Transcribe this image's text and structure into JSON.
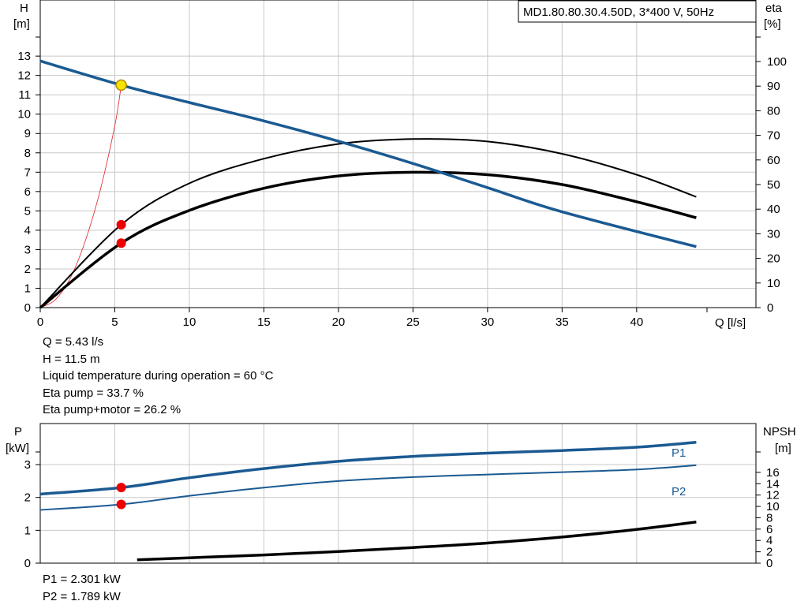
{
  "colors": {
    "head": "#1b5a92",
    "eta": "#000000",
    "npsh": "#000000",
    "eta_loss": "#e02020",
    "marker": "#ee0000",
    "duty": "#f5e400",
    "grid": "#c8c8c8"
  },
  "model_label": "MD1.80.80.30.4.50D, 3*400 V, 50Hz",
  "legend": {
    "p1": "P1",
    "p2": "P2"
  },
  "readouts": {
    "q": "Q = 5.43 l/s",
    "h": "H = 11.5 m",
    "temp": "Liquid temperature during operation = 60 °C",
    "eta_pump": "Eta pump = 33.7 %",
    "eta_total": "Eta pump+motor = 26.2 %",
    "p1": "P1 = 2.301 kW",
    "p2": "P2 = 1.789 kW"
  },
  "chart_data": [
    {
      "type": "line",
      "title": "",
      "xlabel": "Q [l/s]",
      "ylabel": "H [m]",
      "ylabel_top": "H",
      "ylabel_unit": "[m]",
      "y2label_top": "eta",
      "y2label_unit": "[%]",
      "xlim": [
        0,
        48
      ],
      "ylim": [
        0,
        15.9
      ],
      "y2lim": [
        0,
        125
      ],
      "xticks": [
        0,
        5,
        10,
        15,
        20,
        25,
        30,
        35,
        40
      ],
      "yticks": [
        0,
        1,
        2,
        3,
        4,
        5,
        6,
        7,
        8,
        9,
        10,
        11,
        12,
        13
      ],
      "y2ticks": [
        0,
        10,
        20,
        30,
        40,
        50,
        60,
        70,
        80,
        90,
        100
      ],
      "grid": true,
      "series": [
        {
          "key": "head",
          "axis": "y",
          "x": [
            0,
            5.43,
            10,
            15,
            20,
            25,
            30,
            35,
            44
          ],
          "values": [
            12.75,
            11.5,
            10.6,
            9.65,
            8.6,
            7.45,
            6.2,
            4.95,
            3.15
          ]
        },
        {
          "key": "eta_pump",
          "axis": "y2",
          "x": [
            0,
            5.43,
            10,
            15,
            20,
            25,
            30,
            35,
            40,
            44
          ],
          "values": [
            0,
            33.7,
            50.5,
            60.5,
            66.5,
            68.5,
            67.5,
            62.5,
            54,
            45
          ]
        },
        {
          "key": "eta_total",
          "axis": "y2",
          "x": [
            0,
            5.43,
            10,
            15,
            20,
            25,
            30,
            35,
            40,
            44
          ],
          "values": [
            0,
            26.2,
            39.5,
            48.5,
            53.5,
            55,
            54,
            50,
            43,
            36.5
          ]
        },
        {
          "key": "system",
          "axis": "y",
          "x": [
            0,
            1,
            2,
            3,
            4,
            5,
            5.43
          ],
          "values": [
            0,
            0.4,
            1.5,
            3.4,
            6.0,
            9.4,
            11.5
          ]
        }
      ],
      "duty_point": {
        "x": 5.43,
        "y": 11.5
      },
      "markers": [
        {
          "axis": "y2",
          "x": 5.43,
          "y": 33.7
        },
        {
          "axis": "y2",
          "x": 5.43,
          "y": 26.2
        }
      ]
    },
    {
      "type": "line",
      "title": "",
      "xlabel": "",
      "ylabel_top": "P",
      "ylabel_unit": "[kW]",
      "y2label_top": "NPSH",
      "y2label_unit": "[m]",
      "xlim": [
        0,
        48
      ],
      "ylim": [
        0,
        4.25
      ],
      "y2lim": [
        0,
        24.6
      ],
      "yticks": [
        0,
        1,
        2,
        3
      ],
      "y2ticks": [
        0,
        2,
        4,
        6,
        8,
        10,
        12,
        14,
        16
      ],
      "grid": true,
      "series": [
        {
          "key": "p1",
          "name": "P1",
          "axis": "y",
          "x": [
            0,
            5.43,
            10,
            15,
            20,
            25,
            30,
            35,
            40,
            44
          ],
          "values": [
            2.1,
            2.301,
            2.6,
            2.88,
            3.1,
            3.25,
            3.35,
            3.43,
            3.53,
            3.68
          ]
        },
        {
          "key": "p2",
          "name": "P2",
          "axis": "y",
          "x": [
            0,
            5.43,
            10,
            15,
            20,
            25,
            30,
            35,
            40,
            44
          ],
          "values": [
            1.62,
            1.789,
            2.05,
            2.3,
            2.5,
            2.62,
            2.7,
            2.77,
            2.85,
            2.98
          ]
        },
        {
          "key": "npsh",
          "axis": "y2",
          "x": [
            6.5,
            10,
            15,
            20,
            25,
            30,
            35,
            40,
            44
          ],
          "values": [
            0.6,
            0.95,
            1.45,
            2.05,
            2.75,
            3.55,
            4.6,
            5.95,
            7.25
          ]
        }
      ],
      "markers": [
        {
          "axis": "y",
          "x": 5.43,
          "y": 2.301
        },
        {
          "axis": "y",
          "x": 5.43,
          "y": 1.789
        }
      ]
    }
  ]
}
